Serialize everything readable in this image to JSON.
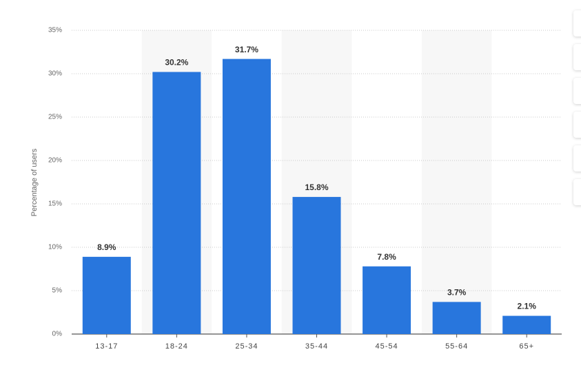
{
  "chart_data": {
    "type": "bar",
    "y_label": "Percentage of users",
    "categories": [
      "13-17",
      "18-24",
      "25-34",
      "35-44",
      "45-54",
      "55-64",
      "65+"
    ],
    "values": [
      8.9,
      30.2,
      31.7,
      15.8,
      7.8,
      3.7,
      2.1
    ],
    "value_labels": [
      "8.9%",
      "30.2%",
      "31.7%",
      "15.8%",
      "7.8%",
      "3.7%",
      "2.1%"
    ],
    "color": "#2876dd",
    "ylim": [
      0,
      35
    ],
    "yticks": [
      {
        "value": 0,
        "label": "0%"
      },
      {
        "value": 5,
        "label": "5%"
      },
      {
        "value": 10,
        "label": "10%"
      },
      {
        "value": 15,
        "label": "15%"
      },
      {
        "value": 20,
        "label": "20%"
      },
      {
        "value": 25,
        "label": "25%"
      },
      {
        "value": 30,
        "label": "30%"
      },
      {
        "value": 35,
        "label": "35%"
      }
    ],
    "grid": true
  }
}
